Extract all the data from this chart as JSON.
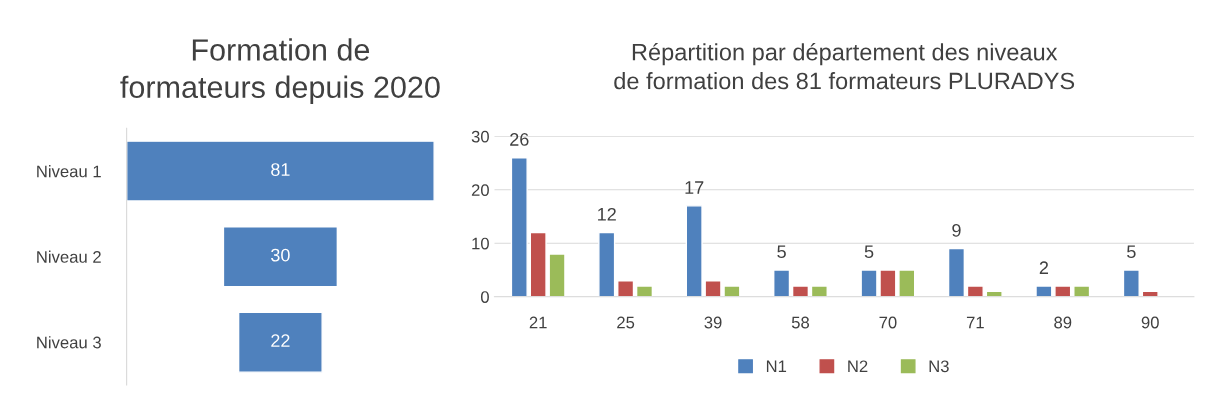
{
  "chart_data": [
    {
      "type": "other",
      "title": "Formation de formateurs depuis 2020",
      "categories": [
        "Niveau 1",
        "Niveau 2",
        "Niveau 3"
      ],
      "values": [
        81,
        30,
        22
      ],
      "color": "#4f81bd",
      "data_labels": true
    },
    {
      "type": "bar",
      "title": "Répartition par département des niveaux de formation des 81 formateurs PLURADYS",
      "categories": [
        "21",
        "25",
        "39",
        "58",
        "70",
        "71",
        "89",
        "90"
      ],
      "series": [
        {
          "name": "N1",
          "color": "#4f81bd",
          "values": [
            26,
            12,
            17,
            5,
            5,
            9,
            2,
            5
          ],
          "value_labels": [
            "26",
            "12",
            "17",
            "5",
            "5",
            "9",
            "2",
            "5"
          ]
        },
        {
          "name": "N2",
          "color": "#c0504d",
          "values": [
            12,
            3,
            3,
            2,
            5,
            2,
            2,
            1
          ]
        },
        {
          "name": "N3",
          "color": "#9bbb59",
          "values": [
            8,
            2,
            2,
            2,
            5,
            1,
            2,
            null
          ]
        }
      ],
      "ylim": [
        0,
        30
      ],
      "yticks": [
        0,
        10,
        20,
        30
      ],
      "grid": "y",
      "legend": "bottom"
    }
  ]
}
